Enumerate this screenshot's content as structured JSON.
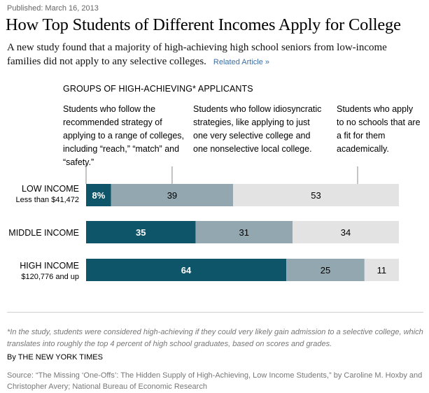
{
  "published": "Published: March 16, 2013",
  "title": "How Top Students of Different Incomes Apply for College",
  "subtitle": "A new study found that a majority of high-achieving high school seniors from low-income families did not apply to any selective colleges.",
  "related_link": "Related Article »",
  "colors": {
    "recommended": "#0f5569",
    "idiosyncratic": "#93a7b1",
    "none": "#e3e3e3"
  },
  "chart_data": {
    "type": "bar",
    "stacked": true,
    "orientation": "horizontal",
    "title": "GROUPS OF HIGH-ACHIEVING* APPLICANTS",
    "categories": [
      {
        "label": "LOW INCOME",
        "sublabel": "Less than $41,472"
      },
      {
        "label": "MIDDLE INCOME",
        "sublabel": ""
      },
      {
        "label": "HIGH INCOME",
        "sublabel": "$120,776 and up"
      }
    ],
    "series": [
      {
        "name": "Students who follow the recommended strategy of applying to a range of colleges, including “reach,” “match” and “safety.”",
        "values": [
          8,
          35,
          64
        ],
        "labels": [
          "8%",
          "35",
          "64"
        ]
      },
      {
        "name": "Students who follow idiosyncratic strategies, like applying to just one very selective college and one nonselective local college.",
        "values": [
          39,
          31,
          25
        ],
        "labels": [
          "39",
          "31",
          "25"
        ]
      },
      {
        "name": "Students who apply to no schools that are a fit for them academically.",
        "values": [
          53,
          34,
          11
        ],
        "labels": [
          "53",
          "34",
          "11"
        ]
      }
    ],
    "xlim": [
      0,
      100
    ]
  },
  "footnote": "*In the study, students were considered high-achieving if they could very likely gain admission to a selective college, which translates into roughly the top 4 percent of high school graduates, based on scores and grades.",
  "byline": "By THE NEW YORK TIMES",
  "source": "Source: “The Missing ‘One-Offs’: The Hidden Supply of High-Achieving, Low Income Students,” by Caroline M. Hoxby and Christopher Avery; National Bureau of Economic Research"
}
